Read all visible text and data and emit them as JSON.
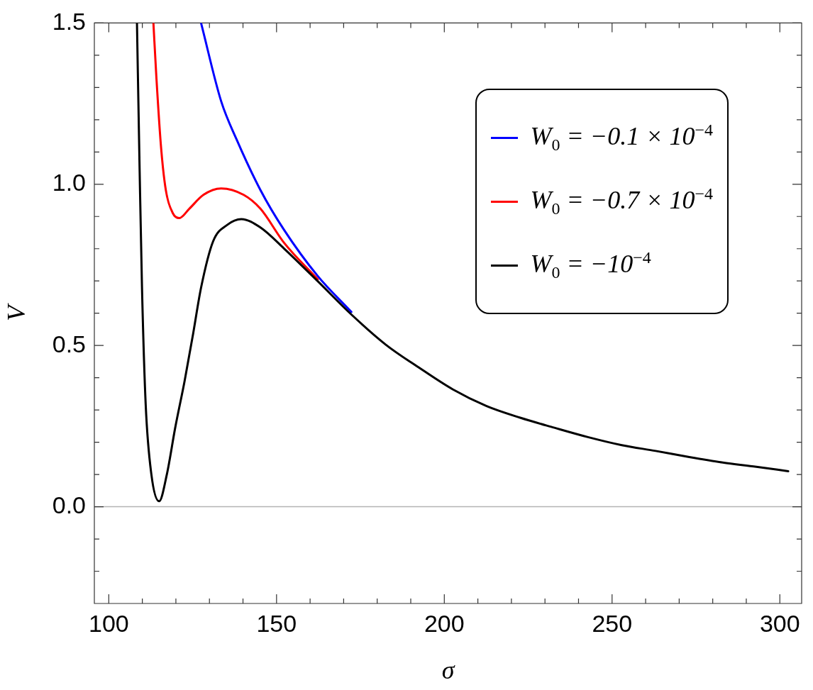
{
  "chart_data": {
    "type": "line",
    "xlabel": "σ",
    "ylabel": "V",
    "xlim": [
      95.7,
      306.5
    ],
    "ylim": [
      -0.3,
      1.5
    ],
    "xticks": [
      100,
      {
        "value": 110,
        "label": null
      },
      {
        "value": 120,
        "label": null
      },
      {
        "value": 130,
        "label": null
      },
      {
        "value": 140,
        "label": null
      },
      150,
      {
        "value": 160,
        "label": null
      },
      {
        "value": 170,
        "label": null
      },
      {
        "value": 180,
        "label": null
      },
      {
        "value": 190,
        "label": null
      },
      200,
      {
        "value": 210,
        "label": null
      },
      {
        "value": 220,
        "label": null
      },
      {
        "value": 230,
        "label": null
      },
      {
        "value": 240,
        "label": null
      },
      250,
      {
        "value": 260,
        "label": null
      },
      {
        "value": 270,
        "label": null
      },
      {
        "value": 280,
        "label": null
      },
      {
        "value": 290,
        "label": null
      },
      300
    ],
    "yticks": [
      {
        "value": -0.2,
        "label": null
      },
      {
        "value": -0.1,
        "label": null
      },
      {
        "value": 0,
        "label": "0.0"
      },
      {
        "value": 0.1,
        "label": null
      },
      {
        "value": 0.2,
        "label": null
      },
      {
        "value": 0.3,
        "label": null
      },
      {
        "value": 0.4,
        "label": null
      },
      0.5,
      {
        "value": 0.6,
        "label": null
      },
      {
        "value": 0.7,
        "label": null
      },
      {
        "value": 0.8,
        "label": null
      },
      {
        "value": 0.9,
        "label": null
      },
      {
        "value": 1.0,
        "label": "1.0"
      },
      {
        "value": 1.1,
        "label": null
      },
      {
        "value": 1.2,
        "label": null
      },
      {
        "value": 1.3,
        "label": null
      },
      {
        "value": 1.4,
        "label": null
      },
      1.5
    ],
    "grid": false,
    "legend": "top right",
    "marker": "none",
    "line_style": "solid",
    "ref_lines": [
      {
        "axis": "y",
        "value": 0,
        "color": "#b3b3b3"
      }
    ],
    "series": [
      {
        "name": "W$_{0}$ = −0.1 × 10$^{−4}$",
        "color": "#0000ff",
        "x": [
          127.5,
          133.5,
          138,
          145.2,
          152.2,
          162.3,
          172.3
        ],
        "values": [
          1.5,
          1.257,
          1.141,
          0.982,
          0.859,
          0.715,
          0.604
        ]
      },
      {
        "name": "W$_{0}$ = −0.7 × 10$^{−4}$",
        "color": "#ff0000",
        "x": [
          113.3,
          114.2,
          115.6,
          117,
          119.1,
          121,
          124,
          128.2,
          133.5,
          140.2,
          145.2,
          152.2,
          162.3
        ],
        "values": [
          1.5,
          1.329,
          1.112,
          0.982,
          0.91,
          0.895,
          0.924,
          0.967,
          0.987,
          0.967,
          0.924,
          0.819,
          0.705
        ]
      },
      {
        "name": "W$_{0}$ = −10$^{−4}$",
        "color": "#000000",
        "x": [
          108.4,
          109.2,
          109.9,
          111,
          112.7,
          115,
          117.3,
          119.8,
          122.6,
          125.1,
          127.5,
          131.1,
          135.3,
          139.5,
          145.2,
          152.2,
          162.3,
          172.3,
          182.5,
          192.5,
          202.5,
          212.6,
          222.6,
          232.8,
          242.8,
          252.9,
          263,
          273,
          283,
          293,
          302.5
        ],
        "values": [
          1.5,
          1.04,
          0.679,
          0.317,
          0.1,
          0.017,
          0.1,
          0.245,
          0.39,
          0.534,
          0.679,
          0.823,
          0.874,
          0.892,
          0.866,
          0.801,
          0.699,
          0.596,
          0.503,
          0.431,
          0.364,
          0.312,
          0.276,
          0.245,
          0.216,
          0.191,
          0.173,
          0.154,
          0.137,
          0.124,
          0.11
        ]
      }
    ]
  }
}
